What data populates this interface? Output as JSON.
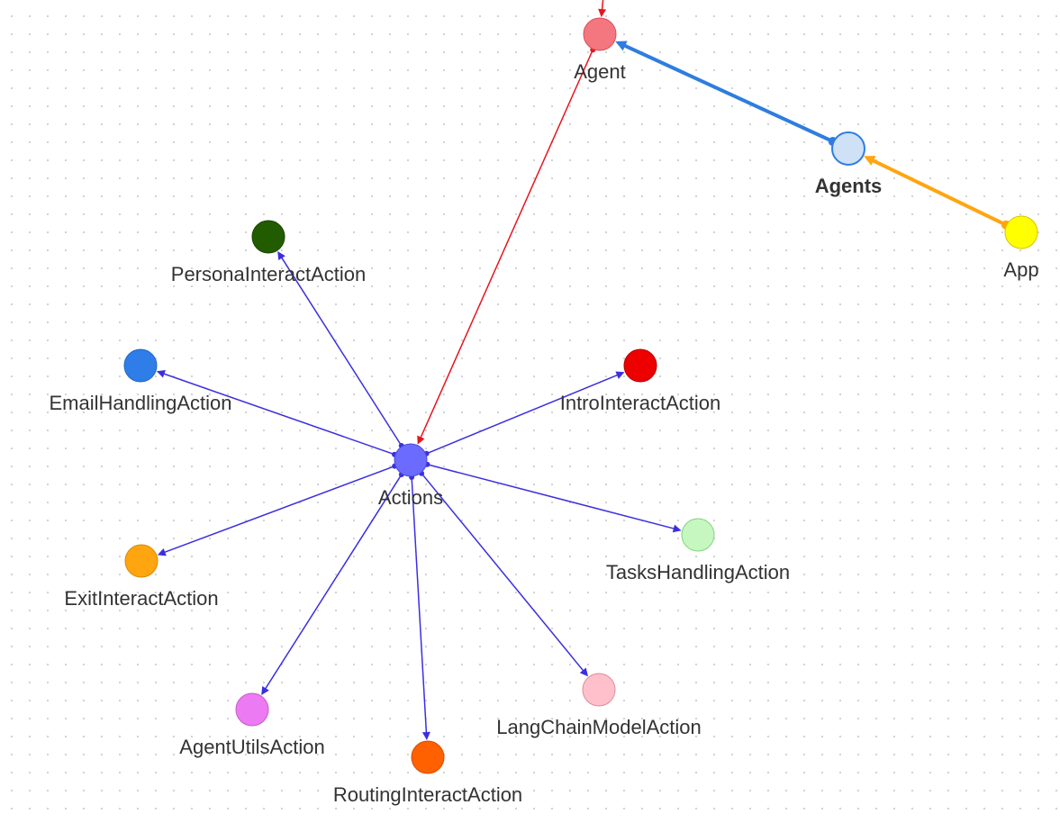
{
  "graph": {
    "nodes": [
      {
        "id": "agent",
        "label": "Agent",
        "color": "#f4767e",
        "stroke": "#d94f58",
        "bold": false
      },
      {
        "id": "agents",
        "label": "Agents",
        "color": "#cfe1f7",
        "stroke": "#2e7de0",
        "bold": true
      },
      {
        "id": "app",
        "label": "App",
        "color": "#ffff00",
        "stroke": "#d6c400",
        "bold": false
      },
      {
        "id": "actions",
        "label": "Actions",
        "color": "#6b6bff",
        "stroke": "#4a4ad8",
        "bold": false
      },
      {
        "id": "persona",
        "label": "PersonaInteractAction",
        "color": "#225c00",
        "stroke": "#1a4500",
        "bold": false
      },
      {
        "id": "email",
        "label": "EmailHandlingAction",
        "color": "#2e7de8",
        "stroke": "#2266c4",
        "bold": false
      },
      {
        "id": "intro",
        "label": "IntroInteractAction",
        "color": "#ee0000",
        "stroke": "#b00000",
        "bold": false
      },
      {
        "id": "tasks",
        "label": "TasksHandlingAction",
        "color": "#c6f7c0",
        "stroke": "#7fd57a",
        "bold": false
      },
      {
        "id": "exit",
        "label": "ExitInteractAction",
        "color": "#ffa510",
        "stroke": "#d98a00",
        "bold": false
      },
      {
        "id": "langchain",
        "label": "LangChainModelAction",
        "color": "#ffc0cb",
        "stroke": "#e08a9a",
        "bold": false
      },
      {
        "id": "utils",
        "label": "AgentUtilsAction",
        "color": "#ec7af2",
        "stroke": "#c659cc",
        "bold": false
      },
      {
        "id": "routing",
        "label": "RoutingInteractAction",
        "color": "#ff6000",
        "stroke": "#d44f00",
        "bold": false
      }
    ],
    "edges": [
      {
        "from": "agents",
        "to": "agent",
        "color": "#2e7de0",
        "width": 4
      },
      {
        "from": "app",
        "to": "agents",
        "color": "#ffa510",
        "width": 4
      },
      {
        "from": "offscreen",
        "to": "agent",
        "color": "#e8141e",
        "width": 1.5
      },
      {
        "from": "agent",
        "to": "actions",
        "color": "#e8141e",
        "width": 1.5
      },
      {
        "from": "actions",
        "to": "persona",
        "color": "#3a2fe0",
        "width": 1.5
      },
      {
        "from": "actions",
        "to": "email",
        "color": "#3a2fe0",
        "width": 1.5
      },
      {
        "from": "actions",
        "to": "intro",
        "color": "#3a2fe0",
        "width": 1.5
      },
      {
        "from": "actions",
        "to": "tasks",
        "color": "#3a2fe0",
        "width": 1.5
      },
      {
        "from": "actions",
        "to": "exit",
        "color": "#3a2fe0",
        "width": 1.5
      },
      {
        "from": "actions",
        "to": "langchain",
        "color": "#3a2fe0",
        "width": 1.5
      },
      {
        "from": "actions",
        "to": "utils",
        "color": "#3a2fe0",
        "width": 1.5
      },
      {
        "from": "actions",
        "to": "routing",
        "color": "#3a2fe0",
        "width": 1.5
      }
    ]
  }
}
